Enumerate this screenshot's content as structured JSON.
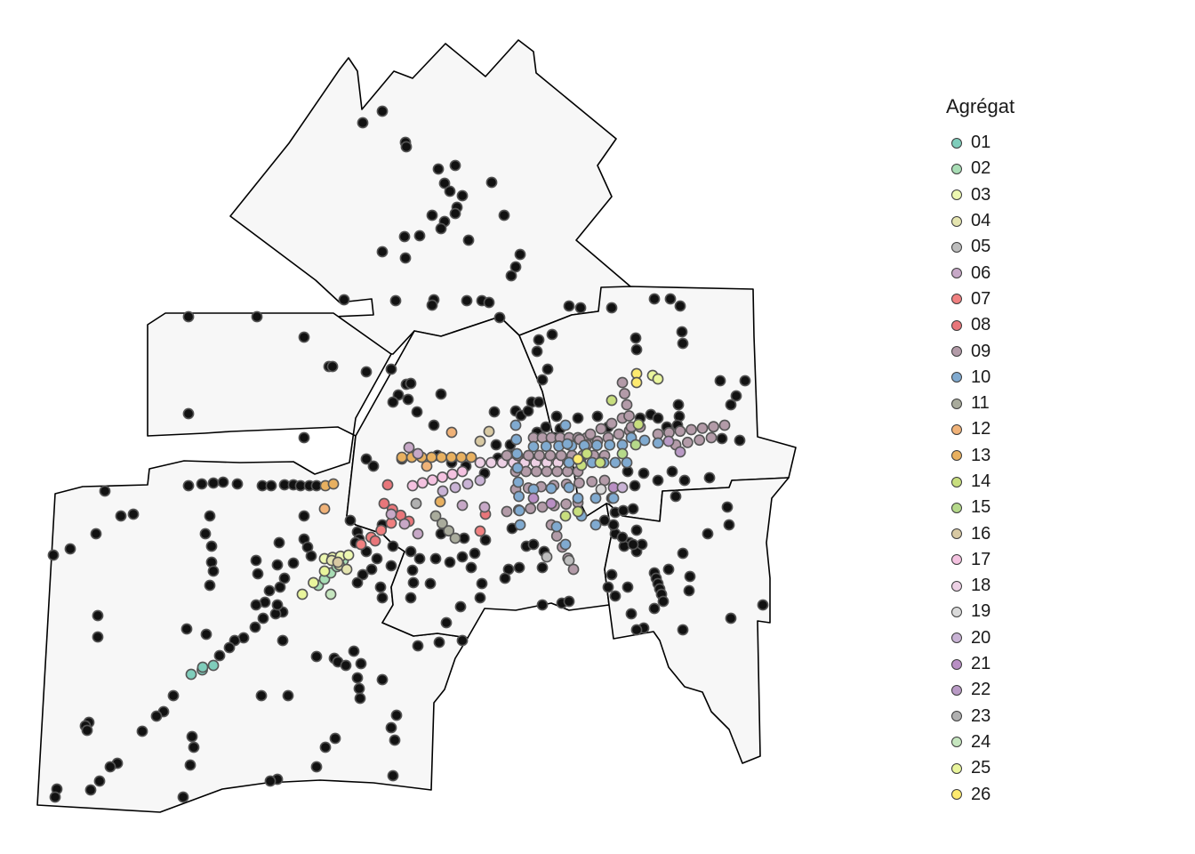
{
  "legend": {
    "title": "Agrégat",
    "items": [
      {
        "label": "01",
        "color": "#7fcdbb"
      },
      {
        "label": "02",
        "color": "#a8ddb5"
      },
      {
        "label": "03",
        "color": "#edf8b1"
      },
      {
        "label": "04",
        "color": "#e5e5b0"
      },
      {
        "label": "05",
        "color": "#bdbdbd"
      },
      {
        "label": "06",
        "color": "#c7a8c7"
      },
      {
        "label": "07",
        "color": "#f08080"
      },
      {
        "label": "08",
        "color": "#e8767a"
      },
      {
        "label": "09",
        "color": "#b39ba8"
      },
      {
        "label": "10",
        "color": "#80aad0"
      },
      {
        "label": "11",
        "color": "#a9ab9c"
      },
      {
        "label": "12",
        "color": "#f0b278"
      },
      {
        "label": "13",
        "color": "#e8b060"
      },
      {
        "label": "14",
        "color": "#c8de7e"
      },
      {
        "label": "15",
        "color": "#b5d98a"
      },
      {
        "label": "16",
        "color": "#d8c9a3"
      },
      {
        "label": "17",
        "color": "#f4c2e0"
      },
      {
        "label": "18",
        "color": "#edd1e5"
      },
      {
        "label": "19",
        "color": "#dadada"
      },
      {
        "label": "20",
        "color": "#c9b3d5"
      },
      {
        "label": "21",
        "color": "#b98fc4"
      },
      {
        "label": "22",
        "color": "#b99ac5"
      },
      {
        "label": "23",
        "color": "#b0b0b0"
      },
      {
        "label": "24",
        "color": "#c6e6bf"
      },
      {
        "label": "25",
        "color": "#e9f59c"
      },
      {
        "label": "26",
        "color": "#fdea6f"
      }
    ]
  },
  "unclustered_color": "#111111"
}
